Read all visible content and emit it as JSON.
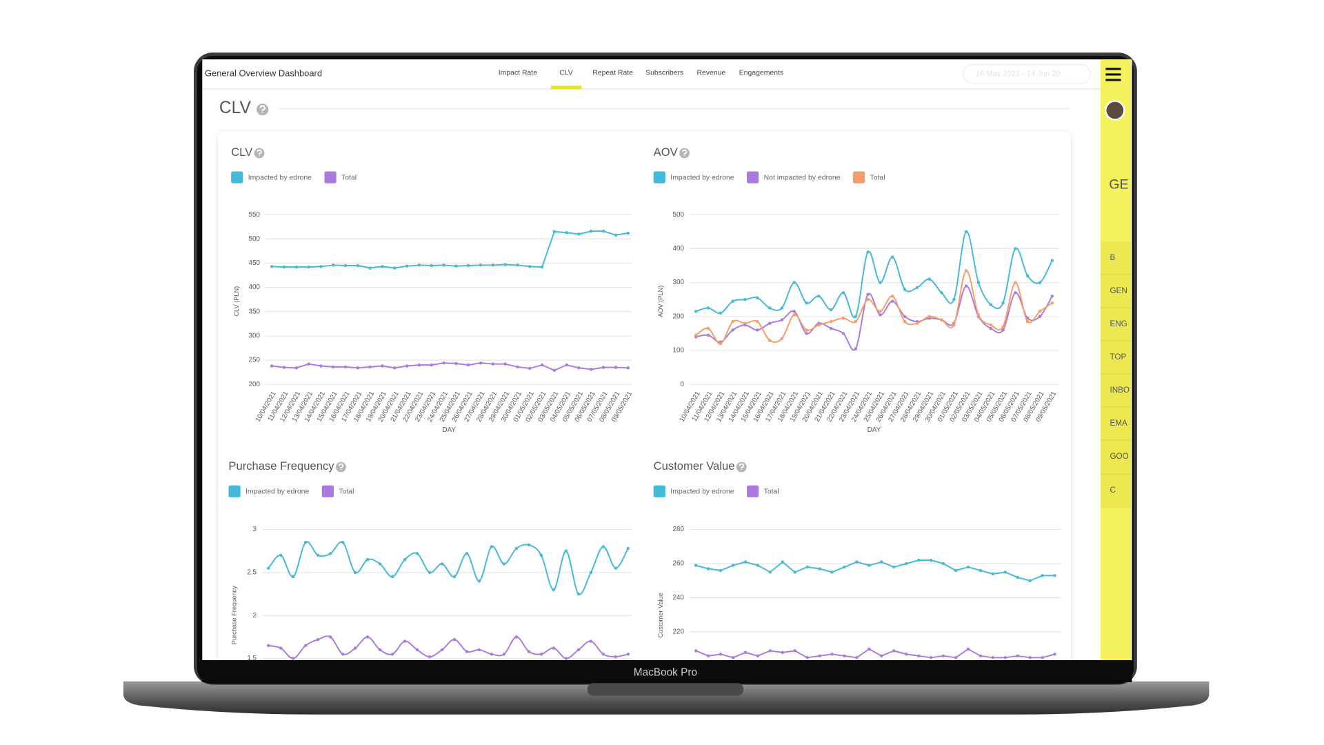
{
  "header": {
    "title": "General Overview Dashboard",
    "date_range": "16 May 2021 - 14 Jun 20"
  },
  "nav": [
    "Impact Rate",
    "CLV",
    "Repeat Rate",
    "Subscribers",
    "Revenue",
    "Engagements"
  ],
  "sidebar": [
    "GE",
    "B",
    "GEN",
    "ENG",
    "TOP",
    "INBO",
    "EMA",
    "GOO",
    "C"
  ],
  "page_title": "CLV",
  "device_label": "MacBook Pro",
  "chart_data": [
    {
      "type": "line",
      "title": "CLV",
      "y_label": "CLV (PLN)",
      "x_label": "DAY",
      "smooth": false,
      "categories": [
        "10/04/2021",
        "11/04/2021",
        "12/04/2021",
        "13/04/2021",
        "14/04/2021",
        "15/04/2021",
        "16/04/2021",
        "17/04/2021",
        "18/04/2021",
        "19/04/2021",
        "20/04/2021",
        "21/04/2021",
        "22/04/2021",
        "23/04/2021",
        "24/04/2021",
        "25/04/2021",
        "26/04/2021",
        "27/04/2021",
        "28/04/2021",
        "29/04/2021",
        "30/04/2021",
        "01/05/2021",
        "02/05/2021",
        "03/05/2021",
        "04/05/2021",
        "05/05/2021",
        "06/05/2021",
        "07/05/2021",
        "08/05/2021",
        "09/05/2021"
      ],
      "series": [
        {
          "name": "Impacted by edrone",
          "color": "#45b9d8",
          "values": [
            443,
            442,
            442,
            442,
            443,
            446,
            445,
            445,
            440,
            443,
            440,
            444,
            446,
            445,
            446,
            444,
            445,
            446,
            446,
            447,
            446,
            443,
            442,
            515,
            513,
            510,
            516,
            516,
            508,
            512
          ]
        },
        {
          "name": "Total",
          "color": "#aa7bdc",
          "values": [
            238,
            235,
            234,
            242,
            238,
            236,
            236,
            234,
            236,
            238,
            234,
            238,
            240,
            240,
            244,
            243,
            240,
            244,
            242,
            242,
            236,
            233,
            240,
            229,
            240,
            234,
            231,
            235,
            235,
            234
          ]
        }
      ],
      "ylim": [
        200,
        550
      ],
      "yticks": [
        200,
        250,
        300,
        350,
        400,
        450,
        500,
        550
      ],
      "grid": true
    },
    {
      "type": "line",
      "title": "AOV",
      "y_label": "AOV (PLN)",
      "x_label": "DAY",
      "smooth": true,
      "categories": [
        "10/04/2021",
        "11/04/2021",
        "12/04/2021",
        "13/04/2021",
        "14/04/2021",
        "15/04/2021",
        "16/04/2021",
        "17/04/2021",
        "18/04/2021",
        "19/04/2021",
        "20/04/2021",
        "21/04/2021",
        "22/04/2021",
        "23/04/2021",
        "24/04/2021",
        "25/04/2021",
        "26/04/2021",
        "27/04/2021",
        "28/04/2021",
        "29/04/2021",
        "30/04/2021",
        "01/05/2021",
        "02/05/2021",
        "03/05/2021",
        "04/05/2021",
        "05/05/2021",
        "06/05/2021",
        "07/05/2021",
        "08/05/2021",
        "09/05/2021"
      ],
      "series": [
        {
          "name": "Impacted by edrone",
          "color": "#45b9d8",
          "values": [
            215,
            225,
            210,
            245,
            250,
            255,
            225,
            225,
            300,
            240,
            260,
            220,
            270,
            200,
            390,
            300,
            375,
            280,
            285,
            310,
            270,
            250,
            450,
            300,
            235,
            240,
            400,
            320,
            300,
            365
          ]
        },
        {
          "name": "Not impacted by edrone",
          "color": "#aa7bdc",
          "values": [
            140,
            145,
            125,
            160,
            175,
            160,
            180,
            190,
            215,
            150,
            180,
            165,
            150,
            105,
            265,
            205,
            245,
            200,
            185,
            195,
            190,
            180,
            290,
            200,
            165,
            160,
            270,
            195,
            200,
            260
          ]
        },
        {
          "name": "Total",
          "color": "#f59d6b",
          "values": [
            145,
            165,
            120,
            185,
            180,
            185,
            130,
            135,
            205,
            160,
            175,
            185,
            195,
            185,
            250,
            215,
            260,
            185,
            180,
            200,
            190,
            175,
            335,
            205,
            175,
            170,
            300,
            185,
            215,
            240
          ]
        }
      ],
      "ylim": [
        0,
        500
      ],
      "yticks": [
        0,
        100,
        200,
        300,
        400,
        500
      ],
      "grid": true
    },
    {
      "type": "line",
      "title": "Purchase Frequency",
      "y_label": "Purchase Frequency",
      "smooth": true,
      "series": [
        {
          "name": "Impacted by edrone",
          "color": "#45b9d8",
          "values": [
            2.55,
            2.7,
            2.45,
            2.85,
            2.7,
            2.72,
            2.85,
            2.5,
            2.65,
            2.6,
            2.45,
            2.65,
            2.72,
            2.5,
            2.6,
            2.45,
            2.72,
            2.4,
            2.8,
            2.6,
            2.78,
            2.82,
            2.7,
            2.3,
            2.75,
            2.25,
            2.5,
            2.8,
            2.55,
            2.78
          ]
        },
        {
          "name": "Total",
          "color": "#aa7bdc",
          "values": [
            1.65,
            1.62,
            1.5,
            1.65,
            1.72,
            1.75,
            1.55,
            1.62,
            1.75,
            1.6,
            1.55,
            1.7,
            1.6,
            1.52,
            1.6,
            1.72,
            1.58,
            1.6,
            1.55,
            1.55,
            1.75,
            1.58,
            1.55,
            1.62,
            1.5,
            1.6,
            1.7,
            1.55,
            1.52,
            1.55
          ]
        }
      ],
      "ylim": [
        1.5,
        3
      ],
      "yticks": [
        1.5,
        2,
        2.5,
        3
      ],
      "grid": true
    },
    {
      "type": "line",
      "title": "Customer Value",
      "y_label": "Customer Value",
      "smooth": false,
      "series": [
        {
          "name": "Impacted by edrone",
          "color": "#45b9d8",
          "values": [
            259,
            257,
            256,
            259,
            261,
            259,
            255,
            261,
            255,
            258,
            257,
            255,
            258,
            261,
            259,
            261,
            258,
            260,
            262,
            262,
            260,
            256,
            258,
            256,
            254,
            255,
            252,
            250,
            253,
            253
          ]
        },
        {
          "name": "Total",
          "color": "#aa7bdc",
          "values": [
            209,
            206,
            207,
            205,
            208,
            206,
            209,
            208,
            209,
            205,
            206,
            207,
            206,
            205,
            210,
            206,
            209,
            207,
            206,
            205,
            206,
            205,
            210,
            206,
            205,
            205,
            206,
            205,
            205,
            207
          ]
        }
      ],
      "ylim": [
        205,
        280
      ],
      "yticks": [
        220,
        240,
        260,
        280
      ],
      "grid": true
    }
  ]
}
